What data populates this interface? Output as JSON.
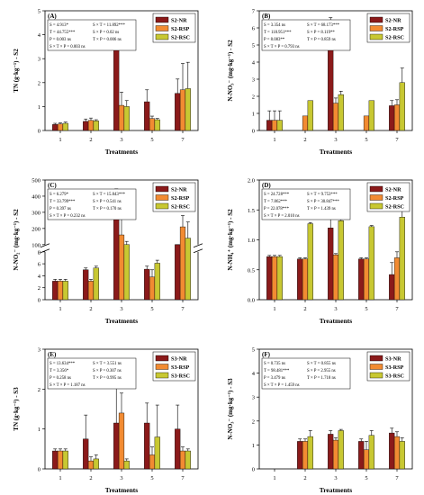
{
  "colors": {
    "NR": "#8b1a1a",
    "RSP": "#f28b32",
    "RSC": "#c8c832"
  },
  "chart_data": [
    {
      "panel": "(A)",
      "type": "bar",
      "ylabel": "TN (g·kg⁻¹) - S2",
      "xlabel": "Treatments",
      "categories": [
        "1",
        "2",
        "3",
        "5",
        "7"
      ],
      "ylim": [
        0,
        5
      ],
      "yticks": [
        "0",
        "1",
        "2",
        "3",
        "4",
        "5"
      ],
      "series": [
        {
          "name": "S2-NR",
          "values": [
            0.25,
            0.38,
            3.5,
            1.2,
            1.55
          ],
          "errors": [
            0.05,
            0.1,
            0.9,
            0.5,
            0.6
          ]
        },
        {
          "name": "S2-RSP",
          "values": [
            0.27,
            0.42,
            1.05,
            0.5,
            1.7
          ],
          "errors": [
            0.05,
            0.1,
            0.55,
            0.1,
            1.1
          ]
        },
        {
          "name": "S2-RSC",
          "values": [
            0.3,
            0.4,
            1.0,
            0.45,
            1.75
          ],
          "errors": [
            0.05,
            0.05,
            0.25,
            0.05,
            1.1
          ]
        }
      ],
      "stats": [
        "S = 4.913*",
        "S × T = 11.892***",
        "T = 44.755***",
        "S × P = 0.02 ns",
        "P = 0.003 ns",
        "T × P = 0.006 ns",
        "S × T × P = 0.003 ns"
      ]
    },
    {
      "panel": "(B)",
      "type": "bar",
      "ylabel": "N-NO₃⁻ (mg·kg⁻¹) - S2",
      "xlabel": "Treatments",
      "categories": [
        "1",
        "2",
        "3",
        "5",
        "7"
      ],
      "ylim": [
        0,
        7
      ],
      "yticks": [
        "0",
        "1",
        "2",
        "3",
        "4",
        "5",
        "6",
        "7"
      ],
      "series": [
        {
          "name": "S2-NR",
          "values": [
            0.6,
            0,
            5.9,
            0,
            1.45
          ],
          "errors": [
            0.55,
            0,
            0.7,
            0,
            0.3
          ]
        },
        {
          "name": "S2-RSP",
          "values": [
            0.6,
            0.85,
            1.6,
            0.85,
            1.5
          ],
          "errors": [
            0.55,
            0,
            0.3,
            0,
            0.3
          ]
        },
        {
          "name": "S2-RSC",
          "values": [
            0.6,
            1.75,
            2.1,
            1.75,
            2.8
          ],
          "errors": [
            0.55,
            0,
            0.2,
            0,
            0.85
          ]
        }
      ],
      "stats": [
        "S = 3.354 ns",
        "S × T = 68.173***",
        "T = 118.951***",
        "S × P = 8.119**",
        "P = 8.083**",
        "T × P = 0.859 ns",
        "S × T × P = 0.793 ns"
      ]
    },
    {
      "panel": "(C)",
      "type": "bar",
      "axis_break": true,
      "ylabel": "N-NO₂⁻ (mg·kg⁻¹) - S2",
      "xlabel": "Treatments",
      "categories": [
        "1",
        "2",
        "3",
        "5",
        "7"
      ],
      "ylim_lower": [
        0,
        8
      ],
      "ylim_upper": [
        100,
        500
      ],
      "yticks_lower": [
        "0",
        "2",
        "4",
        "6",
        "8"
      ],
      "yticks_upper": [
        "100",
        "200",
        "300",
        "400",
        "500"
      ],
      "series": [
        {
          "name": "S2-NR",
          "values": [
            3.1,
            5.0,
            415,
            5.1,
            75
          ],
          "errors": [
            0.3,
            0.3,
            30,
            0.5,
            10
          ]
        },
        {
          "name": "S2-RSP",
          "values": [
            3.1,
            3.1,
            160,
            3.8,
            210
          ],
          "errors": [
            0.3,
            0.3,
            100,
            1.2,
            70
          ]
        },
        {
          "name": "S2-RSC",
          "values": [
            3.1,
            5.3,
            90,
            6.1,
            140
          ],
          "errors": [
            0.3,
            0.3,
            30,
            0.5,
            100
          ]
        }
      ],
      "stats": [
        "S = 6.279*",
        "S × T = 15.843***",
        "T = 33.799***",
        "S × P = 0.541 ns",
        "P = 0.397 ns",
        "T × P = 0.170 ns",
        "S × T × P = 0.232 ns"
      ]
    },
    {
      "panel": "(D)",
      "type": "bar",
      "ylabel": "N-NH₄⁺ (mg·kg⁻¹) - S2",
      "xlabel": "Treatments",
      "categories": [
        "1",
        "2",
        "3",
        "5",
        "7"
      ],
      "ylim": [
        0,
        2.0
      ],
      "yticks": [
        "0.0",
        "0.5",
        "1.0",
        "1.5",
        "2.0"
      ],
      "series": [
        {
          "name": "S2-NR",
          "values": [
            0.72,
            0.68,
            1.2,
            0.68,
            0.42
          ],
          "errors": [
            0.02,
            0.02,
            0.15,
            0.02,
            0.2
          ]
        },
        {
          "name": "S2-RSP",
          "values": [
            0.72,
            0.68,
            0.75,
            0.68,
            0.7
          ],
          "errors": [
            0.02,
            0.02,
            0.02,
            0.02,
            0.1
          ]
        },
        {
          "name": "S2-RSC",
          "values": [
            0.72,
            1.27,
            1.32,
            1.22,
            1.38
          ],
          "errors": [
            0.02,
            0.02,
            0.02,
            0.02,
            0.15
          ]
        }
      ],
      "stats": [
        "S = 24.728***",
        "S × T = 9.753***",
        "T = 7.862***",
        "S × P = 30.847***",
        "P = 22.078***",
        "T × P = 1.439 ns",
        "S × T × P = 2.010 ns"
      ]
    },
    {
      "panel": "(E)",
      "type": "bar",
      "ylabel": "TN (g·kg⁻¹) - S3",
      "xlabel": "Treatments",
      "categories": [
        "1",
        "2",
        "3",
        "5",
        "7"
      ],
      "ylim": [
        0,
        3
      ],
      "yticks": [
        "0",
        "1",
        "2",
        "3"
      ],
      "series": [
        {
          "name": "S3-NR",
          "values": [
            0.45,
            0.75,
            1.15,
            1.15,
            1.0
          ],
          "errors": [
            0.05,
            0.6,
            0.9,
            0.5,
            0.6
          ]
        },
        {
          "name": "S3-RSP",
          "values": [
            0.45,
            0.2,
            1.4,
            0.35,
            0.45
          ],
          "errors": [
            0.05,
            0.1,
            0.5,
            0.2,
            0.1
          ]
        },
        {
          "name": "S3-RSC",
          "values": [
            0.45,
            0.25,
            0.2,
            0.8,
            0.45
          ],
          "errors": [
            0.05,
            0.1,
            0.05,
            0.8,
            0.05
          ]
        }
      ],
      "stats": [
        "S = 13.634***",
        "S × T = 3.551 ns",
        "T = 3.356*",
        "S × P = 0.307 ns",
        "P = 0.258 ns",
        "T × P = 0.995 ns",
        "S × T × P = 1.187 ns"
      ]
    },
    {
      "panel": "(F)",
      "type": "bar",
      "ylabel": "N-NO₃⁻ (mg·kg⁻¹) - S3",
      "xlabel": "Treatments",
      "categories": [
        "1",
        "2",
        "3",
        "5",
        "7"
      ],
      "ylim": [
        0,
        5
      ],
      "yticks": [
        "0",
        "1",
        "2",
        "3",
        "4",
        "5"
      ],
      "series": [
        {
          "name": "S3-NR",
          "values": [
            0,
            1.15,
            1.45,
            1.15,
            1.5
          ],
          "errors": [
            0,
            0.1,
            0.15,
            0.1,
            0.2
          ]
        },
        {
          "name": "S3-RSP",
          "values": [
            0,
            1.15,
            1.2,
            0.8,
            1.35
          ],
          "errors": [
            0,
            0.1,
            0.1,
            0.35,
            0.2
          ]
        },
        {
          "name": "S3-RSC",
          "values": [
            0,
            1.35,
            1.6,
            1.4,
            1.15
          ],
          "errors": [
            0,
            0.25,
            0.05,
            0.2,
            0.15
          ]
        }
      ],
      "stats": [
        "S = 0.735 ns",
        "S × T = 0.855 ns",
        "T = 98.481***",
        "S × P = 2.955 ns",
        "P = 3.479 ns",
        "T × P = 1.718 ns",
        "S × T × P = 1.459 ns"
      ]
    }
  ]
}
